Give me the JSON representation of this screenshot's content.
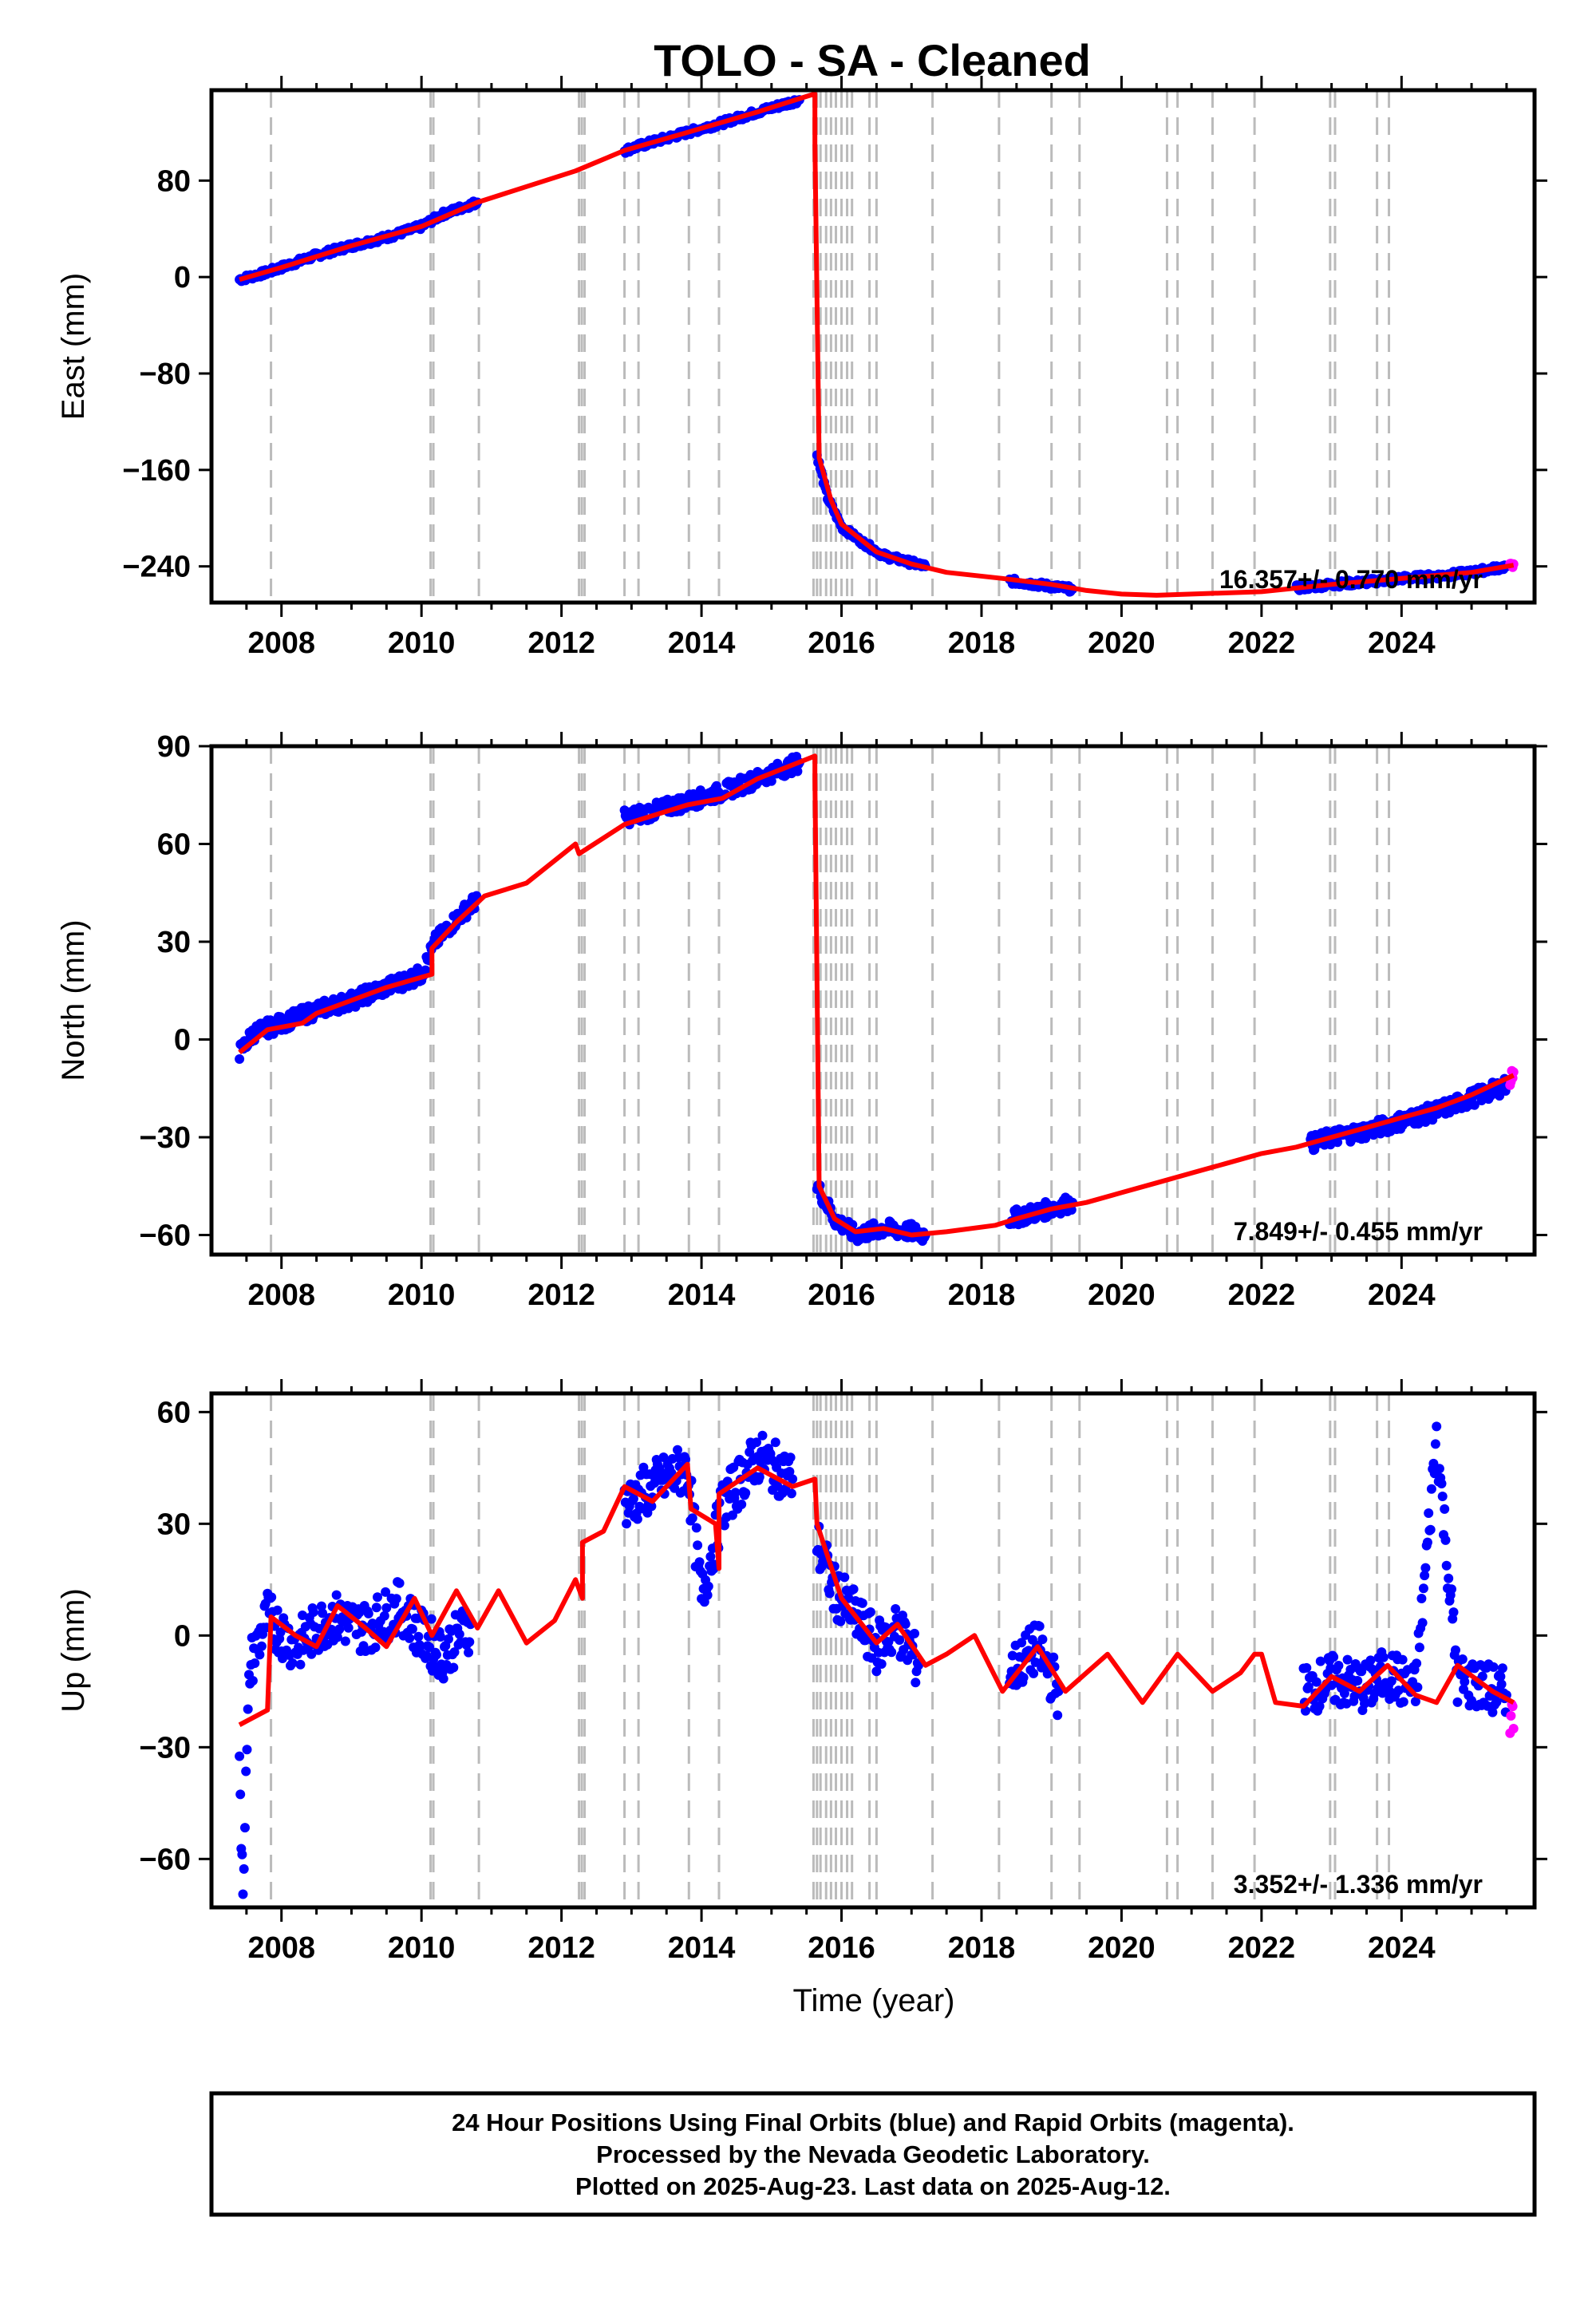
{
  "title": "TOLO  - SA - Cleaned",
  "xlabel": "Time (year)",
  "x_tick_labels": [
    "2008",
    "2010",
    "2012",
    "2014",
    "2016",
    "2018",
    "2020",
    "2022",
    "2024"
  ],
  "footer": {
    "line1": "24 Hour Positions Using Final Orbits (blue) and Rapid Orbits (magenta).",
    "line2": "Processed by the Nevada Geodetic Laboratory.",
    "line3": "Plotted on 2025-Aug-23. Last data on 2025-Aug-12."
  },
  "colors": {
    "final_orbits": "#0000ff",
    "rapid_orbits": "#ff00ff",
    "model": "#ff0000",
    "event_lines": "#bbbbbb"
  },
  "chart_data": [
    {
      "type": "scatter",
      "panel": "east",
      "ylabel": "East (mm)",
      "xlim": [
        2007.0,
        2025.9
      ],
      "ylim": [
        -270,
        155
      ],
      "y_ticks": [
        80,
        0,
        -80,
        -160,
        -240
      ],
      "rate_text": "16.357+/- 0.770 mm/yr",
      "event_years": [
        2007.85,
        2010.13,
        2010.17,
        2010.82,
        2012.25,
        2012.29,
        2012.33,
        2012.9,
        2013.1,
        2013.82,
        2014.25,
        2015.6,
        2015.65,
        2015.7,
        2015.78,
        2015.85,
        2015.92,
        2016.0,
        2016.08,
        2016.15,
        2016.4,
        2016.5,
        2017.3,
        2018.25,
        2019.0,
        2019.4,
        2020.65,
        2020.8,
        2021.3,
        2021.9,
        2022.98,
        2023.05,
        2023.65,
        2023.82
      ],
      "series": [
        {
          "name": "Final Orbits",
          "points": [
            [
              2007.4,
              -2
            ],
            [
              2007.8,
              4
            ],
            [
              2008.5,
              18
            ],
            [
              2009.0,
              26
            ],
            [
              2009.5,
              33
            ],
            [
              2010.0,
              42
            ],
            [
              2010.3,
              52
            ],
            [
              2010.8,
              62
            ]
          ]
        },
        {
          "name": "Final Orbits",
          "points": [
            [
              2012.9,
              105
            ],
            [
              2013.3,
              112
            ],
            [
              2013.8,
              120
            ],
            [
              2014.3,
              128
            ],
            [
              2014.8,
              137
            ],
            [
              2015.4,
              147
            ]
          ]
        },
        {
          "name": "Final Orbits",
          "points": [
            [
              2015.65,
              -148
            ],
            [
              2015.8,
              -183
            ],
            [
              2016.0,
              -207
            ],
            [
              2016.3,
              -220
            ],
            [
              2016.6,
              -231
            ],
            [
              2017.0,
              -237
            ],
            [
              2017.2,
              -240
            ]
          ]
        },
        {
          "name": "Final Orbits",
          "points": [
            [
              2018.4,
              -252
            ],
            [
              2018.8,
              -255
            ],
            [
              2019.3,
              -259
            ]
          ]
        },
        {
          "name": "Final Orbits",
          "points": [
            [
              2022.5,
              -258
            ],
            [
              2023.0,
              -255
            ],
            [
              2023.5,
              -253
            ],
            [
              2024.0,
              -250
            ],
            [
              2024.5,
              -248
            ],
            [
              2025.0,
              -245
            ],
            [
              2025.5,
              -240
            ]
          ]
        },
        {
          "name": "Rapid Orbits",
          "points": [
            [
              2025.55,
              -240
            ],
            [
              2025.6,
              -238
            ]
          ]
        }
      ],
      "model": [
        [
          2007.4,
          -2
        ],
        [
          2008.0,
          8
        ],
        [
          2009.0,
          26
        ],
        [
          2010.0,
          42
        ],
        [
          2010.8,
          62
        ],
        [
          2011.5,
          75
        ],
        [
          2012.2,
          88
        ],
        [
          2012.9,
          105
        ],
        [
          2013.8,
          120
        ],
        [
          2014.8,
          137
        ],
        [
          2015.62,
          152
        ],
        [
          2015.62,
          110
        ],
        [
          2015.68,
          -150
        ],
        [
          2015.85,
          -185
        ],
        [
          2016.0,
          -205
        ],
        [
          2016.5,
          -228
        ],
        [
          2017.0,
          -238
        ],
        [
          2017.5,
          -245
        ],
        [
          2018.3,
          -250
        ],
        [
          2019.0,
          -255
        ],
        [
          2019.5,
          -260
        ],
        [
          2020.0,
          -263
        ],
        [
          2020.5,
          -264
        ],
        [
          2021.0,
          -263
        ],
        [
          2022.0,
          -261
        ],
        [
          2022.5,
          -258
        ],
        [
          2023.0,
          -255
        ],
        [
          2024.0,
          -250
        ],
        [
          2025.0,
          -245
        ],
        [
          2025.6,
          -239
        ]
      ]
    },
    {
      "type": "scatter",
      "panel": "north",
      "ylabel": "North (mm)",
      "xlim": [
        2007.0,
        2025.9
      ],
      "ylim": [
        -66,
        90
      ],
      "y_ticks": [
        90,
        60,
        30,
        0,
        -30,
        -60
      ],
      "rate_text": "7.849+/- 0.455 mm/yr",
      "event_years": [
        2007.85,
        2010.13,
        2010.17,
        2010.82,
        2012.25,
        2012.29,
        2012.33,
        2012.9,
        2013.1,
        2013.82,
        2014.25,
        2015.6,
        2015.65,
        2015.7,
        2015.78,
        2015.85,
        2015.92,
        2016.0,
        2016.08,
        2016.15,
        2016.4,
        2016.5,
        2017.3,
        2018.25,
        2019.0,
        2019.4,
        2020.65,
        2020.8,
        2021.3,
        2021.9,
        2022.98,
        2023.05,
        2023.65,
        2023.82
      ],
      "series": [
        {
          "name": "Final Orbits",
          "points": [
            [
              2007.4,
              -4
            ],
            [
              2007.6,
              2
            ],
            [
              2008.0,
              5
            ],
            [
              2008.5,
              9
            ],
            [
              2009.0,
              12
            ],
            [
              2009.5,
              16
            ],
            [
              2010.0,
              20
            ],
            [
              2010.2,
              30
            ],
            [
              2010.5,
              37
            ],
            [
              2010.8,
              43
            ]
          ]
        },
        {
          "name": "Final Orbits",
          "points": [
            [
              2012.9,
              68
            ],
            [
              2013.3,
              70
            ],
            [
              2013.8,
              73
            ],
            [
              2014.3,
              76
            ],
            [
              2014.8,
              80
            ],
            [
              2015.4,
              85
            ]
          ]
        },
        {
          "name": "Final Orbits",
          "points": [
            [
              2015.65,
              -45
            ],
            [
              2015.9,
              -55
            ],
            [
              2016.2,
              -60
            ],
            [
              2016.6,
              -58
            ],
            [
              2017.0,
              -59
            ],
            [
              2017.2,
              -60
            ]
          ]
        },
        {
          "name": "Final Orbits",
          "points": [
            [
              2018.4,
              -55
            ],
            [
              2018.8,
              -53
            ],
            [
              2019.3,
              -50
            ]
          ]
        },
        {
          "name": "Final Orbits",
          "points": [
            [
              2022.7,
              -32
            ],
            [
              2023.0,
              -30
            ],
            [
              2023.5,
              -28
            ],
            [
              2024.0,
              -25
            ],
            [
              2024.5,
              -22
            ],
            [
              2025.0,
              -18
            ],
            [
              2025.5,
              -14
            ]
          ]
        },
        {
          "name": "Rapid Orbits",
          "points": [
            [
              2025.55,
              -12
            ],
            [
              2025.6,
              -10
            ]
          ]
        }
      ],
      "model": [
        [
          2007.4,
          -4
        ],
        [
          2007.8,
          3
        ],
        [
          2008.3,
          5
        ],
        [
          2008.5,
          8
        ],
        [
          2009.0,
          12
        ],
        [
          2009.5,
          16
        ],
        [
          2010.15,
          20
        ],
        [
          2010.15,
          28
        ],
        [
          2010.5,
          36
        ],
        [
          2010.9,
          44
        ],
        [
          2011.5,
          48
        ],
        [
          2012.2,
          60
        ],
        [
          2012.25,
          57
        ],
        [
          2012.9,
          66
        ],
        [
          2013.8,
          72
        ],
        [
          2014.3,
          74
        ],
        [
          2014.8,
          80
        ],
        [
          2015.62,
          87
        ],
        [
          2015.62,
          80
        ],
        [
          2015.68,
          -45
        ],
        [
          2015.9,
          -55
        ],
        [
          2016.2,
          -59
        ],
        [
          2016.6,
          -58
        ],
        [
          2017.0,
          -60
        ],
        [
          2017.5,
          -59
        ],
        [
          2018.2,
          -57
        ],
        [
          2018.5,
          -55
        ],
        [
          2019.0,
          -52
        ],
        [
          2019.5,
          -50
        ],
        [
          2020.0,
          -47
        ],
        [
          2020.5,
          -44
        ],
        [
          2021.0,
          -41
        ],
        [
          2021.5,
          -38
        ],
        [
          2022.0,
          -35
        ],
        [
          2022.5,
          -33
        ],
        [
          2023.0,
          -30
        ],
        [
          2023.5,
          -27
        ],
        [
          2024.0,
          -24
        ],
        [
          2024.5,
          -21
        ],
        [
          2025.0,
          -17
        ],
        [
          2025.6,
          -11
        ]
      ]
    },
    {
      "type": "scatter",
      "panel": "up",
      "ylabel": "Up (mm)",
      "xlim": [
        2007.0,
        2025.9
      ],
      "ylim": [
        -73,
        65
      ],
      "y_ticks": [
        60,
        30,
        0,
        -30,
        -60
      ],
      "rate_text": "3.352+/- 1.336 mm/yr",
      "event_years": [
        2007.85,
        2010.13,
        2010.17,
        2010.82,
        2012.25,
        2012.29,
        2012.33,
        2012.9,
        2013.1,
        2013.82,
        2014.25,
        2015.6,
        2015.65,
        2015.7,
        2015.78,
        2015.85,
        2015.92,
        2016.0,
        2016.08,
        2016.15,
        2016.4,
        2016.5,
        2017.3,
        2018.25,
        2019.0,
        2019.4,
        2020.65,
        2020.8,
        2021.3,
        2021.9,
        2022.98,
        2023.05,
        2023.65,
        2023.82
      ],
      "series": [
        {
          "name": "Final Orbits",
          "points": [
            [
              2007.4,
              -38
            ],
            [
              2007.45,
              -65
            ],
            [
              2007.55,
              -8
            ],
            [
              2007.8,
              5
            ],
            [
              2008.2,
              -3
            ],
            [
              2008.7,
              5
            ],
            [
              2009.2,
              2
            ],
            [
              2009.7,
              8
            ],
            [
              2010.0,
              0
            ],
            [
              2010.3,
              -5
            ],
            [
              2010.7,
              3
            ]
          ]
        },
        {
          "name": "Final Orbits",
          "points": [
            [
              2012.9,
              35
            ],
            [
              2013.3,
              40
            ],
            [
              2013.8,
              45
            ],
            [
              2014.0,
              10
            ],
            [
              2014.3,
              35
            ],
            [
              2014.8,
              48
            ],
            [
              2015.3,
              42
            ]
          ]
        },
        {
          "name": "Final Orbits",
          "points": [
            [
              2015.65,
              25
            ],
            [
              2015.9,
              12
            ],
            [
              2016.2,
              5
            ],
            [
              2016.5,
              -3
            ],
            [
              2016.8,
              2
            ],
            [
              2017.1,
              -8
            ]
          ]
        },
        {
          "name": "Final Orbits",
          "points": [
            [
              2018.4,
              -10
            ],
            [
              2018.8,
              -3
            ],
            [
              2019.1,
              -15
            ]
          ]
        },
        {
          "name": "Final Orbits",
          "points": [
            [
              2022.6,
              -15
            ],
            [
              2023.0,
              -12
            ],
            [
              2023.5,
              -14
            ],
            [
              2023.8,
              -10
            ],
            [
              2024.2,
              -15
            ],
            [
              2024.5,
              54
            ],
            [
              2024.8,
              -12
            ],
            [
              2025.2,
              -14
            ],
            [
              2025.5,
              -16
            ]
          ]
        },
        {
          "name": "Rapid Orbits",
          "points": [
            [
              2025.55,
              -20
            ],
            [
              2025.6,
              -25
            ]
          ]
        }
      ],
      "model": [
        [
          2007.4,
          -24
        ],
        [
          2007.8,
          -20
        ],
        [
          2007.85,
          5
        ],
        [
          2008.2,
          0
        ],
        [
          2008.5,
          -3
        ],
        [
          2008.8,
          8
        ],
        [
          2009.2,
          2
        ],
        [
          2009.5,
          -3
        ],
        [
          2009.9,
          10
        ],
        [
          2010.15,
          0
        ],
        [
          2010.5,
          12
        ],
        [
          2010.8,
          2
        ],
        [
          2011.1,
          12
        ],
        [
          2011.5,
          -2
        ],
        [
          2011.9,
          4
        ],
        [
          2012.2,
          15
        ],
        [
          2012.3,
          10
        ],
        [
          2012.3,
          25
        ],
        [
          2012.6,
          28
        ],
        [
          2012.9,
          40
        ],
        [
          2013.3,
          36
        ],
        [
          2013.8,
          46
        ],
        [
          2013.85,
          34
        ],
        [
          2014.2,
          30
        ],
        [
          2014.25,
          18
        ],
        [
          2014.25,
          38
        ],
        [
          2014.8,
          45
        ],
        [
          2015.3,
          40
        ],
        [
          2015.62,
          42
        ],
        [
          2015.65,
          30
        ],
        [
          2016.0,
          10
        ],
        [
          2016.5,
          -2
        ],
        [
          2016.8,
          3
        ],
        [
          2017.2,
          -8
        ],
        [
          2017.5,
          -5
        ],
        [
          2017.9,
          0
        ],
        [
          2018.3,
          -15
        ],
        [
          2018.8,
          -3
        ],
        [
          2019.2,
          -15
        ],
        [
          2019.8,
          -5
        ],
        [
          2020.3,
          -18
        ],
        [
          2020.8,
          -5
        ],
        [
          2021.3,
          -15
        ],
        [
          2021.7,
          -10
        ],
        [
          2021.9,
          -5
        ],
        [
          2022.0,
          -5
        ],
        [
          2022.2,
          -18
        ],
        [
          2022.6,
          -19
        ],
        [
          2023.0,
          -11
        ],
        [
          2023.4,
          -15
        ],
        [
          2023.8,
          -8
        ],
        [
          2024.2,
          -16
        ],
        [
          2024.5,
          -18
        ],
        [
          2024.8,
          -8
        ],
        [
          2025.3,
          -15
        ],
        [
          2025.6,
          -18
        ]
      ]
    }
  ]
}
